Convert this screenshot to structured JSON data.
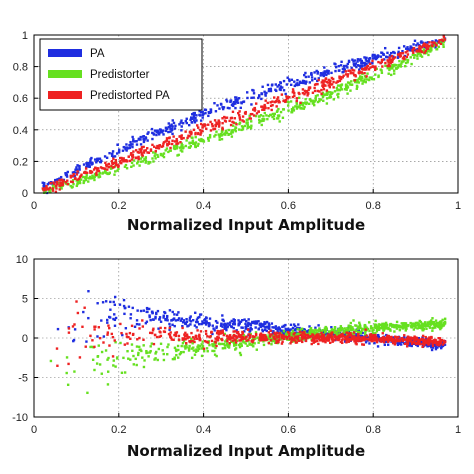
{
  "chart_data": [
    {
      "type": "scatter",
      "title": "",
      "xlabel": "Normalized Input Amplitude",
      "ylabel": "",
      "xlim": [
        0,
        1
      ],
      "ylim": [
        0,
        1
      ],
      "xticks": [
        0,
        0.2,
        0.4,
        0.6,
        0.8,
        1
      ],
      "yticks": [
        0,
        0.2,
        0.4,
        0.6,
        0.8,
        1
      ],
      "xtick_labels": [
        "0",
        "0.2",
        "0.4",
        "0.6",
        "0.8",
        "1"
      ],
      "ytick_labels": [
        "0",
        "0.2",
        "0.4",
        "0.6",
        "0.8",
        "1"
      ],
      "grid": true,
      "legend_position": "top-left",
      "x_range_of_points": [
        0.02,
        0.97
      ],
      "series": [
        {
          "name": "PA",
          "color": "#1f2ee0",
          "x": [
            0.02,
            0.1,
            0.2,
            0.3,
            0.4,
            0.5,
            0.6,
            0.7,
            0.8,
            0.9,
            0.97
          ],
          "y": [
            0.03,
            0.14,
            0.27,
            0.39,
            0.5,
            0.6,
            0.69,
            0.77,
            0.85,
            0.92,
            0.97
          ]
        },
        {
          "name": "Predistorter",
          "color": "#66e020",
          "x": [
            0.02,
            0.1,
            0.2,
            0.3,
            0.4,
            0.5,
            0.6,
            0.7,
            0.8,
            0.9,
            0.97
          ],
          "y": [
            0.01,
            0.07,
            0.15,
            0.24,
            0.33,
            0.43,
            0.53,
            0.63,
            0.74,
            0.86,
            0.96
          ]
        },
        {
          "name": "Predistorted PA",
          "color": "#ee2222",
          "x": [
            0.02,
            0.1,
            0.2,
            0.3,
            0.4,
            0.5,
            0.6,
            0.7,
            0.8,
            0.9,
            0.97
          ],
          "y": [
            0.02,
            0.1,
            0.2,
            0.3,
            0.4,
            0.5,
            0.6,
            0.7,
            0.8,
            0.9,
            0.97
          ]
        }
      ]
    },
    {
      "type": "scatter",
      "title": "",
      "xlabel": "Normalized Input Amplitude",
      "ylabel": "",
      "xlim": [
        0,
        1
      ],
      "ylim": [
        -10,
        10
      ],
      "xticks": [
        0,
        0.2,
        0.4,
        0.6,
        0.8,
        1
      ],
      "yticks": [
        -10,
        -5,
        0,
        5,
        10
      ],
      "xtick_labels": [
        "0",
        "0.2",
        "0.4",
        "0.6",
        "0.8",
        "1"
      ],
      "ytick_labels": [
        "-10",
        "-5",
        "0",
        "5",
        "10"
      ],
      "grid": true,
      "series": [
        {
          "name": "PA",
          "color": "#1f2ee0",
          "x": [
            0.05,
            0.1,
            0.2,
            0.3,
            0.4,
            0.5,
            0.6,
            0.7,
            0.8,
            0.9,
            0.97
          ],
          "center": [
            1.5,
            3.0,
            3.0,
            2.6,
            2.0,
            1.5,
            1.0,
            0.5,
            0.0,
            -0.6,
            -1.0
          ],
          "spread": [
            6.0,
            5.0,
            2.2,
            1.5,
            1.1,
            0.9,
            0.8,
            0.7,
            0.6,
            0.6,
            0.6
          ]
        },
        {
          "name": "Predistorter",
          "color": "#66e020",
          "x": [
            0.05,
            0.1,
            0.2,
            0.3,
            0.4,
            0.5,
            0.6,
            0.7,
            0.8,
            0.9,
            0.97
          ],
          "center": [
            -1.5,
            -3.0,
            -2.6,
            -1.8,
            -1.2,
            -0.5,
            0.2,
            0.8,
            1.3,
            1.6,
            1.8
          ],
          "spread": [
            6.0,
            5.0,
            2.2,
            1.5,
            1.1,
            0.9,
            0.8,
            0.7,
            0.6,
            0.6,
            0.6
          ]
        },
        {
          "name": "Predistorted PA",
          "color": "#ee2222",
          "x": [
            0.05,
            0.1,
            0.2,
            0.3,
            0.4,
            0.5,
            0.6,
            0.7,
            0.8,
            0.9,
            0.97
          ],
          "center": [
            0.0,
            0.5,
            0.4,
            0.3,
            0.2,
            0.1,
            0.0,
            0.0,
            -0.1,
            -0.3,
            -0.5
          ],
          "spread": [
            6.0,
            5.0,
            2.0,
            1.4,
            1.0,
            0.8,
            0.7,
            0.6,
            0.6,
            0.5,
            0.5
          ]
        }
      ]
    }
  ]
}
